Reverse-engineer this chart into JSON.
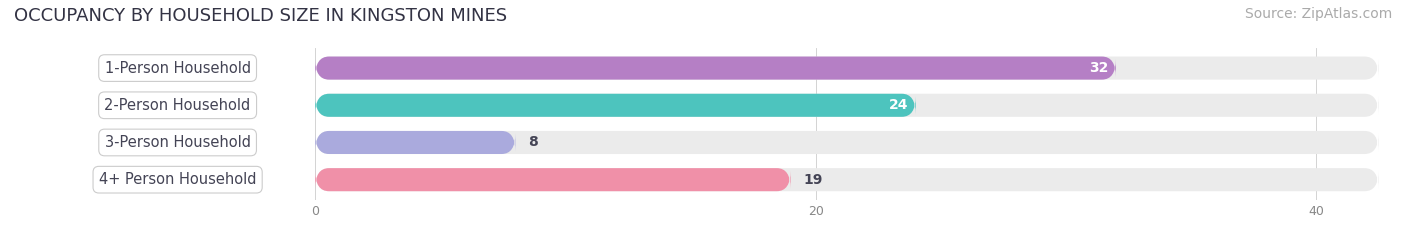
{
  "title": "OCCUPANCY BY HOUSEHOLD SIZE IN KINGSTON MINES",
  "source": "Source: ZipAtlas.com",
  "categories": [
    "1-Person Household",
    "2-Person Household",
    "3-Person Household",
    "4+ Person Household"
  ],
  "values": [
    32,
    24,
    8,
    19
  ],
  "bar_colors": [
    "#b57fc5",
    "#4dc4be",
    "#aaaadd",
    "#f090a8"
  ],
  "bar_bg_color": "#ebebeb",
  "xlim": [
    -12,
    43
  ],
  "xdata_range": [
    0,
    40
  ],
  "xticks": [
    0,
    20,
    40
  ],
  "title_fontsize": 13,
  "source_fontsize": 10,
  "label_fontsize": 10.5,
  "value_fontsize": 10,
  "bar_height": 0.62,
  "background_color": "#ffffff",
  "label_bg_color": "#ffffff",
  "text_color": "#444455",
  "source_color": "#aaaaaa"
}
